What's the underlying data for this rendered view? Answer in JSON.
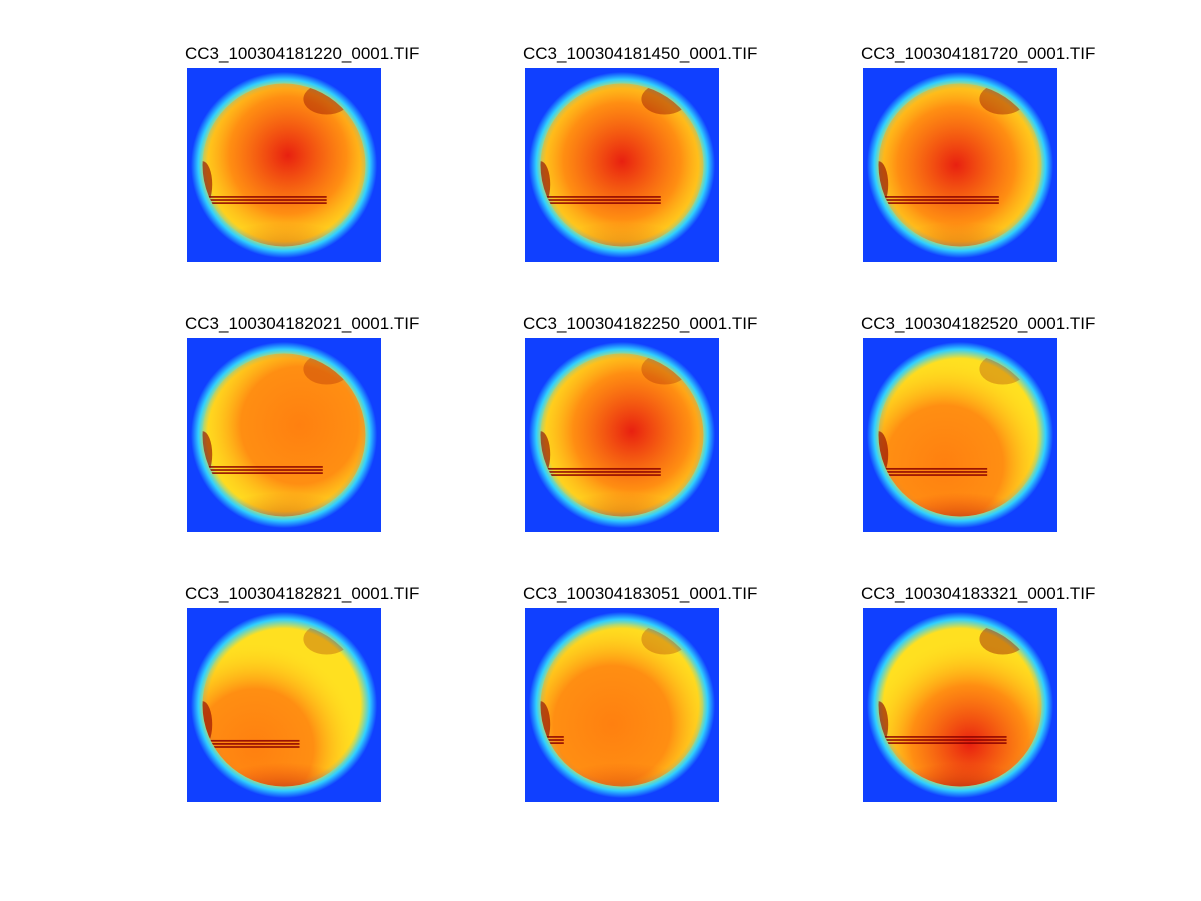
{
  "figure": {
    "panels": [
      {
        "title": "CC3_100304181220_0001.TIF"
      },
      {
        "title": "CC3_100304181450_0001.TIF"
      },
      {
        "title": "CC3_100304181720_0001.TIF"
      },
      {
        "title": "CC3_100304182021_0001.TIF"
      },
      {
        "title": "CC3_100304182250_0001.TIF"
      },
      {
        "title": "CC3_100304182520_0001.TIF"
      },
      {
        "title": "CC3_100304182821_0001.TIF"
      },
      {
        "title": "CC3_100304183051_0001.TIF"
      },
      {
        "title": "CC3_100304183321_0001.TIF"
      }
    ],
    "colors": {
      "background_blue": "#1040ff",
      "rim_cyan": "#30d0ff",
      "mid_yellow": "#ffe020",
      "core_orange": "#ff8010",
      "hot_red": "#e82010",
      "dark_red": "#8a0000"
    }
  }
}
